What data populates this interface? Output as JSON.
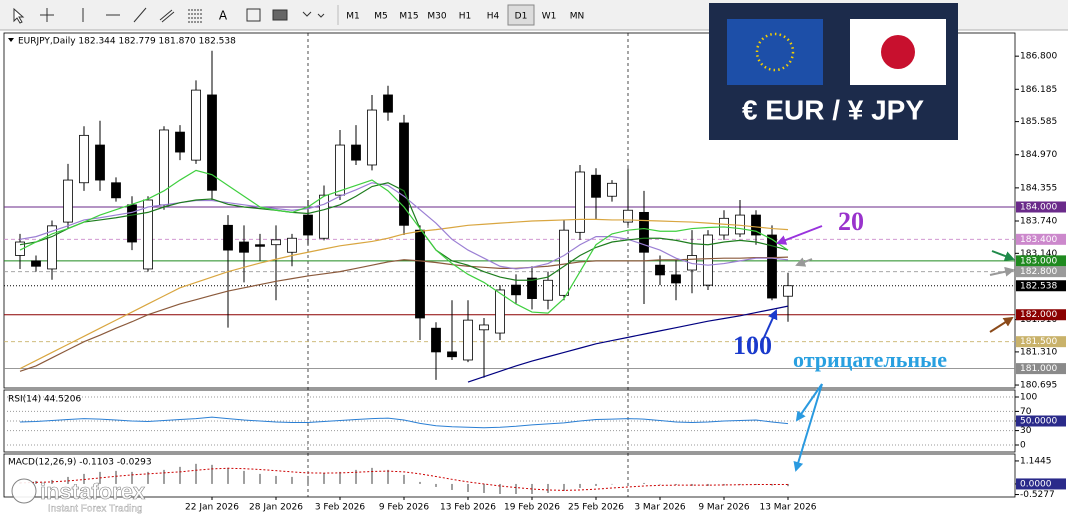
{
  "toolbar": {
    "text_tool": "A",
    "timeframes": [
      "M1",
      "M5",
      "M15",
      "M30",
      "H1",
      "H4",
      "D1",
      "W1",
      "MN"
    ],
    "active": "D1"
  },
  "banner": {
    "title": "€ EUR / ¥ JPY"
  },
  "logo": {
    "name": "instaforex",
    "tagline": "Instant Forex Trading"
  },
  "chart_data": [
    {
      "type": "candlestick",
      "title": "EURJPY,Daily  182.344 182.779 181.870 182.538",
      "categories": [
        null,
        null,
        null,
        null,
        null,
        null,
        null,
        null,
        null,
        null,
        null,
        null,
        "22 Jan 2026",
        null,
        null,
        null,
        "28 Jan 2026",
        null,
        null,
        null,
        "3 Feb 2026",
        null,
        null,
        null,
        "9 Feb 2026",
        null,
        null,
        null,
        "13 Feb 2026",
        null,
        null,
        null,
        "19 Feb 2026",
        null,
        null,
        null,
        "25 Feb 2026",
        null,
        null,
        null,
        "3 Mar 2026",
        null,
        null,
        null,
        "9 Mar 2026",
        null,
        null,
        null,
        "13 Mar 2026"
      ],
      "open": [
        183.1,
        183.0,
        182.85,
        183.72,
        184.45,
        185.15,
        184.45,
        184.04,
        182.85,
        184.04,
        185.39,
        184.87,
        186.08,
        183.66,
        183.35,
        183.3,
        183.3,
        183.16,
        183.85,
        183.42,
        184.22,
        185.15,
        184.78,
        186.08,
        185.56,
        183.57,
        181.75,
        181.31,
        181.16,
        181.72,
        181.66,
        182.55,
        182.68,
        182.27,
        182.36,
        183.53,
        184.59,
        184.2,
        183.72,
        183.9,
        182.92,
        182.74,
        182.83,
        182.55,
        183.48,
        183.5,
        183.85,
        183.48,
        182.344
      ],
      "high": [
        183.5,
        183.1,
        183.75,
        184.8,
        185.5,
        185.6,
        184.55,
        184.2,
        184.2,
        185.5,
        185.52,
        186.35,
        186.9,
        183.85,
        183.66,
        183.5,
        183.66,
        183.5,
        184.13,
        184.4,
        185.43,
        185.52,
        186.08,
        186.25,
        185.71,
        183.66,
        181.86,
        182.27,
        182.27,
        181.94,
        182.55,
        182.75,
        182.9,
        182.8,
        183.76,
        184.78,
        184.72,
        184.5,
        184.72,
        184.3,
        183.1,
        183.02,
        183.57,
        183.57,
        183.94,
        184.13,
        183.94,
        183.66,
        182.779
      ],
      "low": [
        182.85,
        182.8,
        182.65,
        183.6,
        184.3,
        184.3,
        184.1,
        183.2,
        182.8,
        183.95,
        184.87,
        184.8,
        184.13,
        181.76,
        182.6,
        183.0,
        182.27,
        182.9,
        183.3,
        183.38,
        184.13,
        184.78,
        184.68,
        185.6,
        183.48,
        181.53,
        180.79,
        181.16,
        181.12,
        180.83,
        181.53,
        182.2,
        182.1,
        182.1,
        182.27,
        183.39,
        183.76,
        184.1,
        183.66,
        182.2,
        182.55,
        182.27,
        182.4,
        182.46,
        183.39,
        183.44,
        183.3,
        182.27,
        181.87
      ],
      "close": [
        183.35,
        182.9,
        183.65,
        184.5,
        185.33,
        184.5,
        184.17,
        183.35,
        184.13,
        185.43,
        185.02,
        186.17,
        184.31,
        183.2,
        183.16,
        183.27,
        183.39,
        183.42,
        183.48,
        184.22,
        185.15,
        184.87,
        185.8,
        185.76,
        183.66,
        181.94,
        181.31,
        181.22,
        181.9,
        181.81,
        182.46,
        182.37,
        182.3,
        182.64,
        183.57,
        184.65,
        184.18,
        184.44,
        183.94,
        183.16,
        182.74,
        182.59,
        183.1,
        183.48,
        183.79,
        183.85,
        183.48,
        182.31,
        182.538
      ],
      "up_color": "#ffffff",
      "down_color": "#000000",
      "outline_color": "#000000",
      "ylim": [
        180.64,
        187.23
      ],
      "yticks": [
        {
          "value": 186.8,
          "label": "186.800"
        },
        186.185,
        185.585,
        {
          "value": 184.97,
          "label": "184.970"
        },
        184.355,
        {
          "value": 183.74,
          "label": "183.740"
        },
        {
          "value": 183.14,
          "label": "183.140"
        },
        {
          "value": 181.91,
          "label": "181.910"
        },
        {
          "value": 181.31,
          "label": "181.310"
        },
        180.695
      ],
      "series": [
        {
          "color": "#d9a640",
          "values": [
            181.0,
            181.15,
            181.3,
            181.45,
            181.6,
            181.75,
            181.9,
            182.05,
            182.2,
            182.35,
            182.5,
            182.6,
            182.7,
            182.8,
            182.88,
            182.96,
            183.03,
            183.1,
            183.16,
            183.22,
            183.28,
            183.32,
            183.36,
            183.42,
            183.5,
            183.55,
            183.58,
            183.62,
            183.66,
            183.68,
            183.7,
            183.72,
            183.74,
            183.75,
            183.76,
            183.77,
            183.77,
            183.76,
            183.76,
            183.75,
            183.74,
            183.73,
            183.72,
            183.7,
            183.68,
            183.66,
            183.63,
            183.6,
            183.58
          ]
        },
        {
          "color": "#8b5a3c",
          "values": [
            180.95,
            181.05,
            181.2,
            181.35,
            181.5,
            181.62,
            181.75,
            181.87,
            182.0,
            182.1,
            182.2,
            182.28,
            182.36,
            182.44,
            182.5,
            182.56,
            182.62,
            182.67,
            182.72,
            182.76,
            182.8,
            182.86,
            182.92,
            182.98,
            183.02,
            183.0,
            182.97,
            182.93,
            182.9,
            182.88,
            182.86,
            182.86,
            182.88,
            182.9,
            182.94,
            182.98,
            183.0,
            183.0,
            183.0,
            183.0,
            183.02,
            183.02,
            183.03,
            183.04,
            183.05,
            183.05,
            183.06,
            183.06,
            183.07
          ]
        },
        {
          "color": "#000080",
          "values": [
            null,
            null,
            null,
            null,
            null,
            null,
            null,
            null,
            null,
            null,
            null,
            null,
            null,
            null,
            null,
            null,
            null,
            null,
            null,
            null,
            null,
            null,
            null,
            null,
            null,
            null,
            null,
            null,
            180.75,
            180.85,
            180.95,
            181.05,
            181.14,
            181.22,
            181.3,
            181.38,
            181.46,
            181.52,
            181.58,
            181.64,
            181.7,
            181.76,
            181.82,
            181.88,
            181.93,
            181.98,
            182.04,
            182.1,
            182.16
          ]
        },
        {
          "color": "#9b7fd4",
          "values": [
            183.4,
            183.45,
            183.55,
            183.65,
            183.76,
            183.8,
            183.85,
            183.9,
            184.0,
            184.04,
            184.08,
            184.12,
            184.12,
            184.08,
            184.04,
            184.0,
            183.97,
            183.94,
            183.97,
            184.05,
            184.2,
            184.32,
            184.45,
            184.4,
            184.2,
            183.95,
            183.7,
            183.4,
            183.2,
            183.05,
            182.9,
            182.85,
            182.88,
            182.95,
            183.1,
            183.3,
            183.45,
            183.45,
            183.4,
            183.3,
            183.2,
            183.05,
            182.95,
            182.92,
            182.95,
            183.0,
            183.05,
            183.05,
            183.02
          ]
        },
        {
          "color": "#1e7d1e",
          "values": [
            183.3,
            183.35,
            183.45,
            183.6,
            183.72,
            183.76,
            183.8,
            183.85,
            183.9,
            184.0,
            184.08,
            184.13,
            184.15,
            184.05,
            184.0,
            183.97,
            183.94,
            183.9,
            183.88,
            183.95,
            184.04,
            184.2,
            184.38,
            184.45,
            184.3,
            183.6,
            183.2,
            183.0,
            182.92,
            182.8,
            182.7,
            182.64,
            182.64,
            182.7,
            182.9,
            183.1,
            183.25,
            183.35,
            183.39,
            183.42,
            183.42,
            183.38,
            183.32,
            183.3,
            183.35,
            183.38,
            183.35,
            183.28,
            183.2
          ]
        },
        {
          "color": "#3fcf3f",
          "values": [
            183.2,
            183.35,
            183.5,
            183.6,
            183.72,
            183.85,
            183.95,
            184.05,
            184.15,
            184.3,
            184.5,
            184.68,
            184.6,
            184.4,
            184.2,
            184.0,
            183.94,
            183.9,
            184.0,
            184.2,
            184.3,
            184.4,
            184.5,
            184.3,
            184.0,
            183.6,
            183.2,
            182.95,
            182.75,
            182.6,
            182.4,
            182.2,
            182.05,
            182.03,
            182.3,
            182.8,
            183.3,
            183.5,
            183.57,
            183.6,
            183.55,
            183.55,
            183.6,
            183.62,
            183.63,
            183.6,
            183.55,
            183.4,
            183.2
          ]
        }
      ],
      "levels": [
        {
          "value": 184.0,
          "label": "184.000",
          "color": "#6a2a8a",
          "style": "solid"
        },
        {
          "value": 183.4,
          "label": "183.400",
          "color": "#cc88cc",
          "style": "dashed"
        },
        {
          "value": 183.0,
          "label": "183.000",
          "color": "#1f8a1f",
          "style": "solid"
        },
        {
          "value": 182.8,
          "label": "182.800",
          "color": "#9a9a9a",
          "style": "dashed"
        },
        {
          "value": 182.538,
          "label": "182.538",
          "color": "#000000",
          "style": "dotted"
        },
        {
          "value": 182.0,
          "label": "182.000",
          "color": "#8b0000",
          "style": "solid"
        },
        {
          "value": 181.5,
          "label": "181.500",
          "color": "#c9b26a",
          "style": "dashed"
        },
        {
          "value": 181.0,
          "label": "181.000",
          "color": "#8a8a8a",
          "style": "solid"
        }
      ],
      "annotations": [
        "20",
        "100",
        "отрицательные"
      ]
    },
    {
      "type": "line",
      "title": "RSI(14) 44.5206",
      "color": "#2a7fd4",
      "values": [
        48,
        49,
        51,
        53,
        55,
        54,
        52,
        50,
        49,
        51,
        53,
        55,
        58,
        55,
        52,
        50,
        48,
        47,
        47,
        49,
        51,
        53,
        55,
        56,
        52,
        45,
        40,
        38,
        37,
        36,
        37,
        39,
        42,
        44,
        46,
        50,
        53,
        54,
        55,
        54,
        51,
        48,
        47,
        48,
        50,
        51,
        52,
        48,
        44.5206
      ],
      "ylim": [
        -14.6,
        114.6
      ],
      "yticks": [
        100,
        70,
        {
          "value": 50,
          "label": "50.0000"
        },
        30,
        0
      ],
      "grid": true
    },
    {
      "type": "bar",
      "title": "MACD(12,26,9) -0.1103 -0.0293",
      "ylim": [
        -0.65,
        1.49
      ],
      "yticks": [
        1.1445,
        {
          "value": 0,
          "label": "0.0000"
        },
        -0.5277
      ],
      "series": [
        {
          "type": "bar",
          "color": "#a0a0a0",
          "values": [
            0.1,
            0.15,
            0.2,
            0.35,
            0.5,
            0.6,
            0.65,
            0.6,
            0.6,
            0.7,
            0.85,
            1.0,
            0.95,
            0.8,
            0.65,
            0.5,
            0.4,
            0.35,
            0.4,
            0.55,
            0.6,
            0.7,
            0.8,
            0.7,
            0.45,
            0.1,
            -0.15,
            -0.3,
            -0.4,
            -0.45,
            -0.5,
            -0.5,
            -0.5,
            -0.45,
            -0.35,
            -0.2,
            -0.1,
            0.0,
            0.05,
            0.05,
            0.0,
            -0.05,
            -0.1,
            -0.1,
            -0.08,
            -0.05,
            -0.05,
            -0.08,
            -0.1103
          ]
        },
        {
          "type": "line",
          "color": "#cc0000",
          "values": [
            0.05,
            0.08,
            0.1,
            0.15,
            0.22,
            0.3,
            0.38,
            0.45,
            0.5,
            0.55,
            0.6,
            0.68,
            0.75,
            0.78,
            0.76,
            0.72,
            0.66,
            0.6,
            0.55,
            0.54,
            0.55,
            0.58,
            0.62,
            0.64,
            0.6,
            0.5,
            0.37,
            0.23,
            0.1,
            0.0,
            -0.1,
            -0.18,
            -0.25,
            -0.3,
            -0.32,
            -0.3,
            -0.26,
            -0.2,
            -0.15,
            -0.1,
            -0.07,
            -0.06,
            -0.06,
            -0.06,
            -0.05,
            -0.04,
            -0.03,
            -0.03,
            -0.0293
          ]
        }
      ]
    }
  ]
}
